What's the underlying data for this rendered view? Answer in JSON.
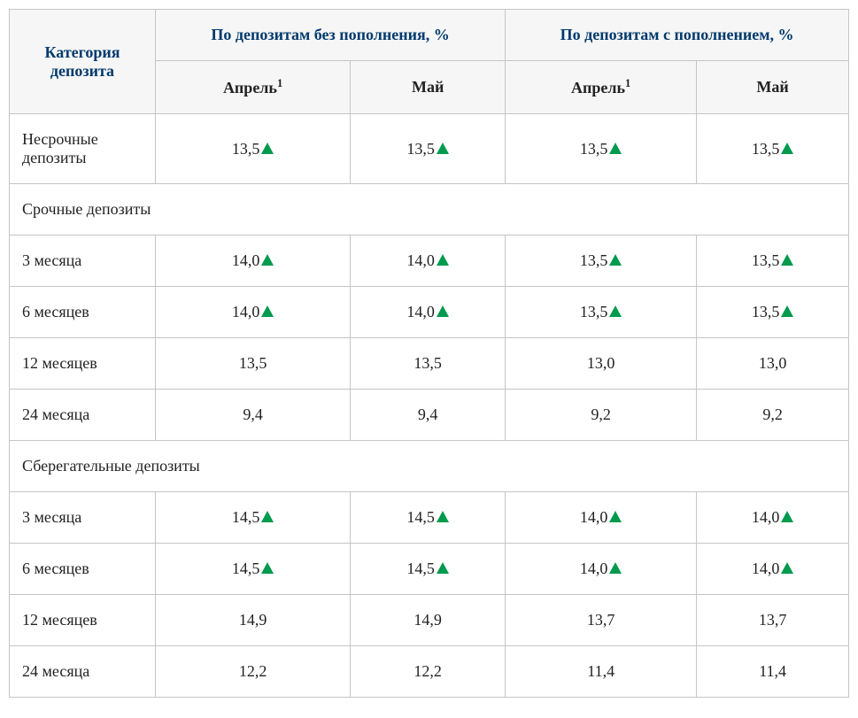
{
  "table": {
    "type": "table",
    "colors": {
      "header_bg": "#f6f6f6",
      "header_text": "#003a6d",
      "body_text": "#222222",
      "border": "#c5c5c5",
      "arrow": "#009a4e",
      "background": "#ffffff"
    },
    "fontsize": {
      "header": 18,
      "body": 18
    },
    "headers": {
      "category": "Категория депозита",
      "group1": "По депозитам без пополнения, %",
      "group2": "По депозитам с пополнением, %",
      "month1": "Апрель",
      "month1_sup": "1",
      "month2": "Май"
    },
    "rows": [
      {
        "type": "data",
        "label": "Несрочные депозиты",
        "values": [
          {
            "text": "13,5",
            "arrow": true
          },
          {
            "text": "13,5",
            "arrow": true
          },
          {
            "text": "13,5",
            "arrow": true
          },
          {
            "text": "13,5",
            "arrow": true
          }
        ]
      },
      {
        "type": "section",
        "label": "Срочные депозиты"
      },
      {
        "type": "data",
        "label": "3 месяца",
        "values": [
          {
            "text": "14,0",
            "arrow": true
          },
          {
            "text": "14,0",
            "arrow": true
          },
          {
            "text": "13,5",
            "arrow": true
          },
          {
            "text": "13,5",
            "arrow": true
          }
        ]
      },
      {
        "type": "data",
        "label": "6 месяцев",
        "values": [
          {
            "text": "14,0",
            "arrow": true
          },
          {
            "text": "14,0",
            "arrow": true
          },
          {
            "text": "13,5",
            "arrow": true
          },
          {
            "text": "13,5",
            "arrow": true
          }
        ]
      },
      {
        "type": "data",
        "label": "12 месяцев",
        "values": [
          {
            "text": "13,5",
            "arrow": false
          },
          {
            "text": "13,5",
            "arrow": false
          },
          {
            "text": "13,0",
            "arrow": false
          },
          {
            "text": "13,0",
            "arrow": false
          }
        ]
      },
      {
        "type": "data",
        "label": "24 месяца",
        "values": [
          {
            "text": "9,4",
            "arrow": false
          },
          {
            "text": "9,4",
            "arrow": false
          },
          {
            "text": "9,2",
            "arrow": false
          },
          {
            "text": "9,2",
            "arrow": false
          }
        ]
      },
      {
        "type": "section",
        "label": "Сберегательные депозиты"
      },
      {
        "type": "data",
        "label": "3 месяца",
        "values": [
          {
            "text": "14,5",
            "arrow": true
          },
          {
            "text": "14,5",
            "arrow": true
          },
          {
            "text": "14,0",
            "arrow": true
          },
          {
            "text": "14,0",
            "arrow": true
          }
        ]
      },
      {
        "type": "data",
        "label": "6 месяцев",
        "values": [
          {
            "text": "14,5",
            "arrow": true
          },
          {
            "text": "14,5",
            "arrow": true
          },
          {
            "text": "14,0",
            "arrow": true
          },
          {
            "text": "14,0",
            "arrow": true
          }
        ]
      },
      {
        "type": "data",
        "label": "12 месяцев",
        "values": [
          {
            "text": "14,9",
            "arrow": false
          },
          {
            "text": "14,9",
            "arrow": false
          },
          {
            "text": "13,7",
            "arrow": false
          },
          {
            "text": "13,7",
            "arrow": false
          }
        ]
      },
      {
        "type": "data",
        "label": "24 месяца",
        "values": [
          {
            "text": "12,2",
            "arrow": false
          },
          {
            "text": "12,2",
            "arrow": false
          },
          {
            "text": "11,4",
            "arrow": false
          },
          {
            "text": "11,4",
            "arrow": false
          }
        ]
      }
    ]
  }
}
